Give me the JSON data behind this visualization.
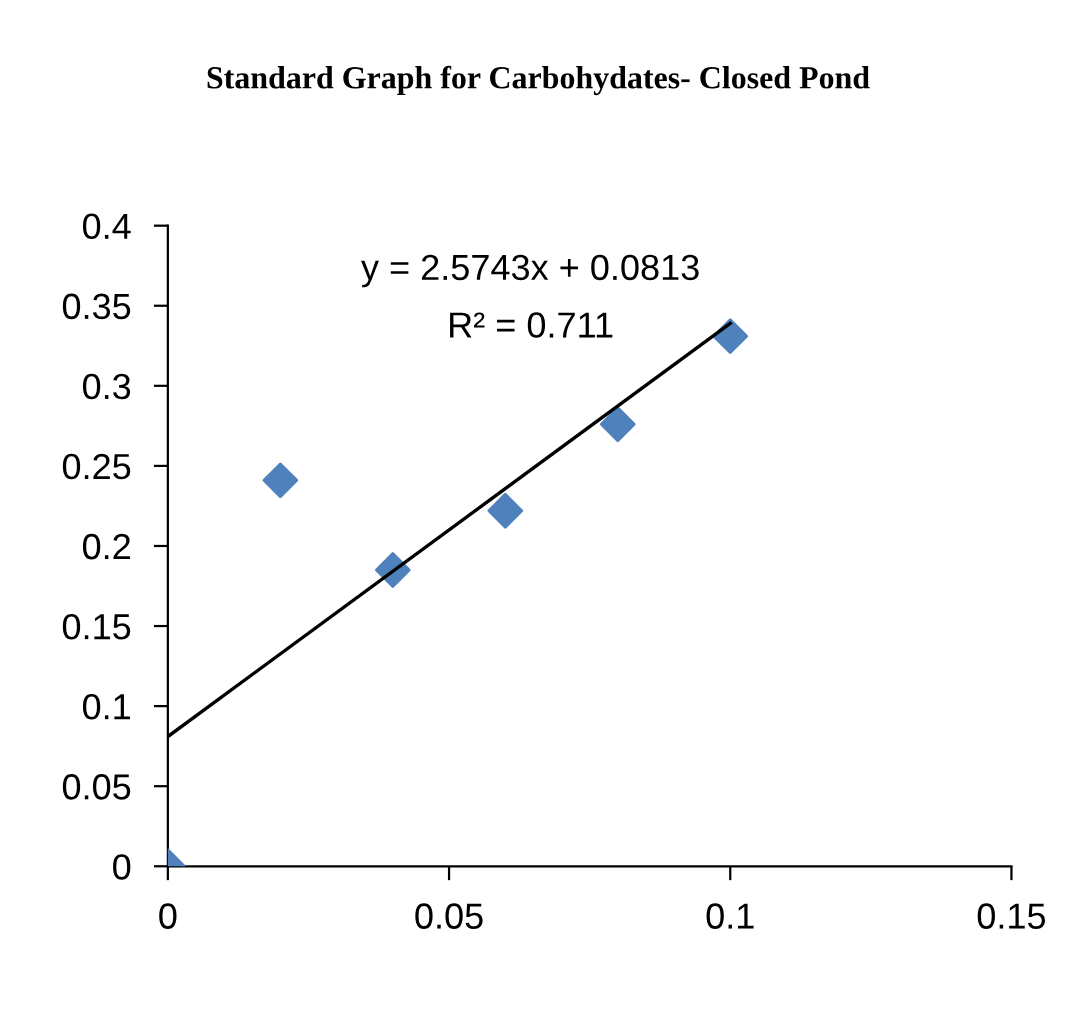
{
  "chart_data": {
    "type": "scatter",
    "title": "Standard Graph for Carbohydates- Closed Pond",
    "series": [
      {
        "color": "#4f81bd",
        "marker": "diamond",
        "x": [
          0,
          0.02,
          0.04,
          0.06,
          0.08,
          0.1
        ],
        "values": [
          0,
          0.241,
          0.185,
          0.222,
          0.276,
          0.331
        ]
      },
      {
        "type": "line",
        "color": "#000000",
        "marker": "none",
        "line_style": "solid",
        "x": [
          0,
          0.1
        ],
        "values": [
          0.081,
          0.339
        ]
      }
    ],
    "annotations": [
      "y = 2.5743x + 0.0813",
      "R² = 0.711"
    ],
    "xlim": [
      0,
      0.15
    ],
    "xticks": [
      0,
      0.05,
      0.1,
      0.15
    ],
    "ylim": [
      0,
      0.4
    ],
    "yticks": [
      0,
      0.05,
      0.1,
      0.15,
      0.2,
      0.25,
      0.3,
      0.35,
      0.4
    ],
    "grid": false,
    "legend": false
  }
}
